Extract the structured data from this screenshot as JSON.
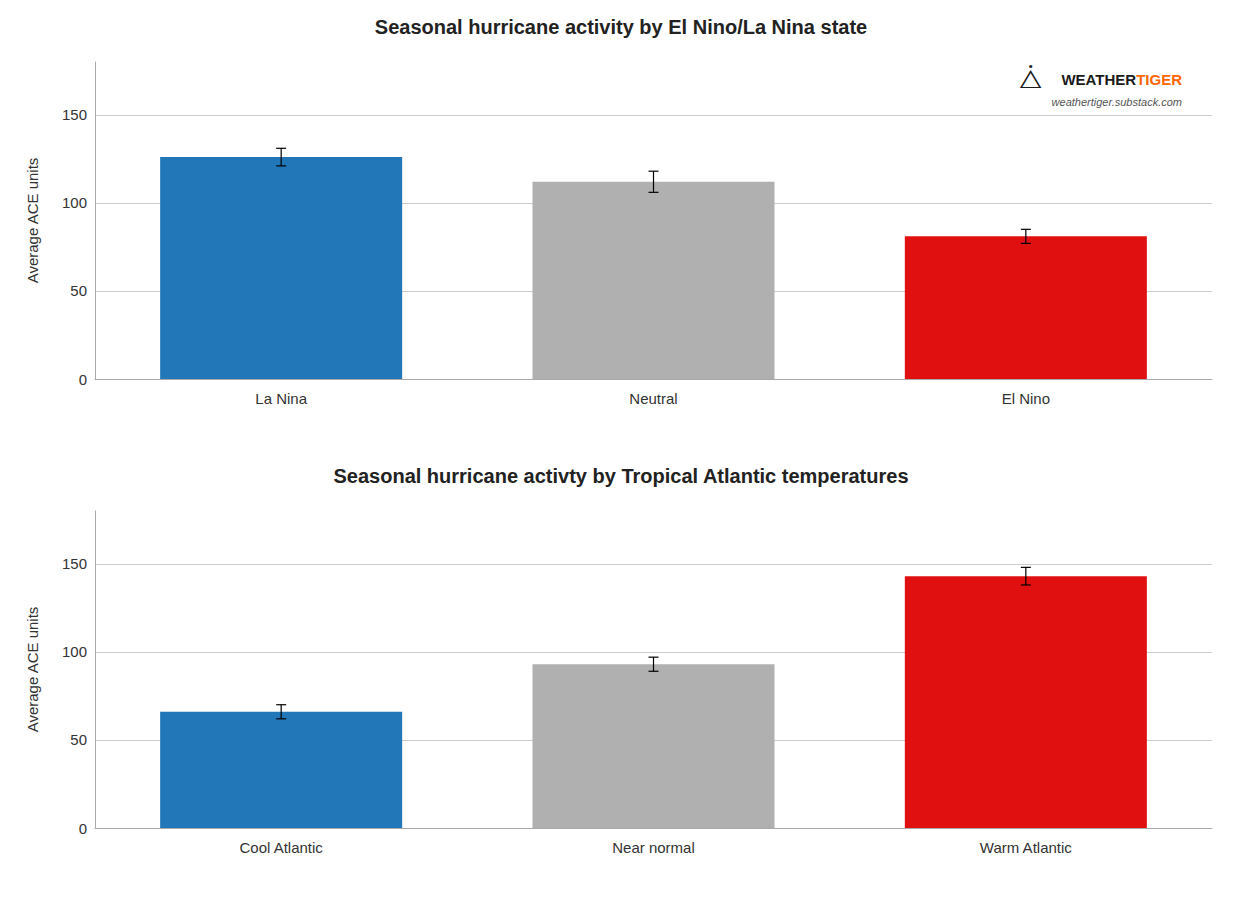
{
  "chart_data": [
    {
      "type": "bar",
      "title": "Seasonal hurricane activity by El Nino/La Nina state",
      "categories": [
        "La Nina",
        "Neutral",
        "El Nino"
      ],
      "values": [
        126,
        112,
        81
      ],
      "errors": [
        5,
        6,
        4
      ],
      "colors": [
        "#2177b8",
        "#b0b0b0",
        "#e01010"
      ],
      "ylabel": "Average ACE units",
      "ylim": [
        0,
        180
      ],
      "yticks": [
        0,
        50,
        100,
        150
      ],
      "grid": true,
      "annotations": [
        {
          "text": "WEATHER",
          "color": "#1a1a1a"
        },
        {
          "text": "TIGER",
          "color": "#ff6600"
        },
        {
          "text": "weathertiger.substack.com",
          "color": "#555555"
        },
        {
          "text": "⧊",
          "color": "#1a1a1a"
        }
      ]
    },
    {
      "type": "bar",
      "title": "Seasonal hurricane activty by Tropical Atlantic temperatures",
      "categories": [
        "Cool Atlantic",
        "Near normal",
        "Warm Atlantic"
      ],
      "values": [
        66,
        93,
        143
      ],
      "errors": [
        4,
        4,
        5
      ],
      "colors": [
        "#2177b8",
        "#b0b0b0",
        "#e01010"
      ],
      "ylabel": "Average ACE units",
      "ylim": [
        0,
        180
      ],
      "yticks": [
        0,
        50,
        100,
        150
      ],
      "grid": true
    }
  ]
}
